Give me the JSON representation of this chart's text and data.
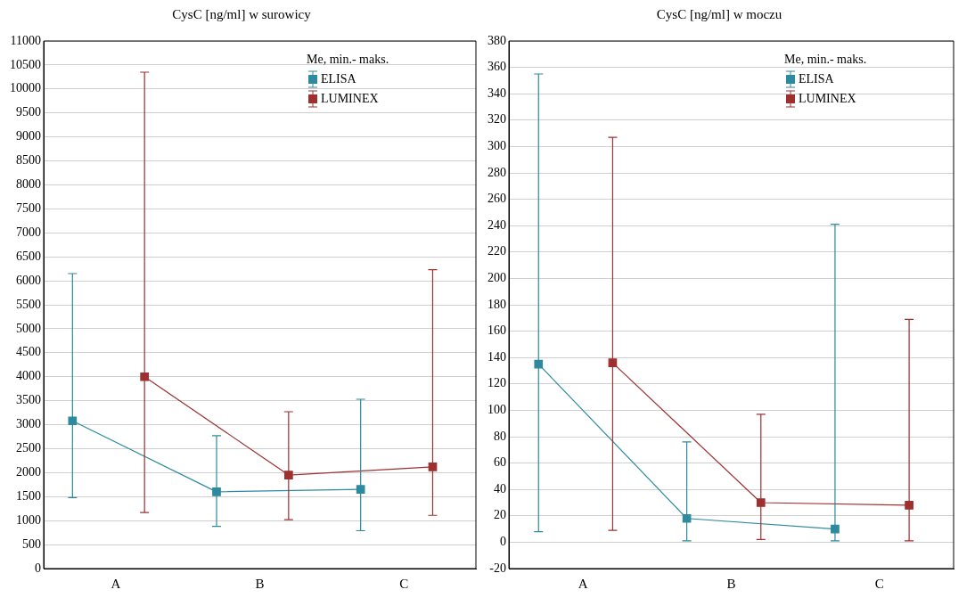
{
  "chart_data": [
    {
      "type": "line",
      "title": "CysC [ng/ml] w surowicy",
      "legend_title": "Me, min.- maks.",
      "categories": [
        "A",
        "B",
        "C"
      ],
      "series": [
        {
          "name": "ELISA",
          "color": "#2e8a9e",
          "values": [
            3080,
            1600,
            1650
          ],
          "errors": [
            [
              1480,
              6150
            ],
            [
              880,
              2770
            ],
            [
              790,
              3530
            ]
          ]
        },
        {
          "name": "LUMINEX",
          "color": "#9e3030",
          "values": [
            4000,
            1950,
            2120
          ],
          "errors": [
            [
              1170,
              10350
            ],
            [
              1020,
              3270
            ],
            [
              1110,
              6230
            ]
          ]
        }
      ],
      "ylim": [
        0,
        11000
      ],
      "yticks": [
        0,
        500,
        1000,
        1500,
        2000,
        2500,
        3000,
        3500,
        4000,
        4500,
        5000,
        5500,
        6000,
        6500,
        7000,
        7500,
        8000,
        8500,
        9000,
        9500,
        10000,
        10500,
        11000
      ],
      "grid": "y",
      "legend": "top right",
      "marker": "square"
    },
    {
      "type": "line",
      "title": "CysC [ng/ml] w moczu",
      "legend_title": "Me, min.- maks.",
      "categories": [
        "A",
        "B",
        "C"
      ],
      "series": [
        {
          "name": "ELISA",
          "color": "#2e8a9e",
          "values": [
            135,
            18,
            10
          ],
          "errors": [
            [
              8,
              355
            ],
            [
              1,
              76
            ],
            [
              1,
              241
            ]
          ]
        },
        {
          "name": "LUMINEX",
          "color": "#9e3030",
          "values": [
            136,
            30,
            28
          ],
          "errors": [
            [
              9,
              307
            ],
            [
              2,
              97
            ],
            [
              1,
              169
            ]
          ]
        }
      ],
      "ylim": [
        -20,
        380
      ],
      "yticks": [
        -20,
        0,
        20,
        40,
        60,
        80,
        100,
        120,
        140,
        160,
        180,
        200,
        220,
        240,
        260,
        280,
        300,
        320,
        340,
        360,
        380
      ],
      "grid": "y",
      "legend": "top right",
      "marker": "square"
    }
  ]
}
